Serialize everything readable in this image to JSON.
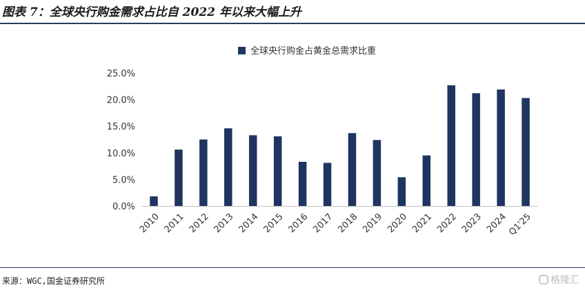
{
  "figure": {
    "title": "图表 7：全球央行购金需求占比自 2022 年以来大幅上升",
    "source": "来源：WGC,国金证券研究所",
    "watermark": "格隆汇"
  },
  "colors": {
    "bar": "#1f3460",
    "axis": "#bfbfbf",
    "rule": "#2b3a5c"
  },
  "chart_data": {
    "type": "bar",
    "categories": [
      "2010",
      "2011",
      "2012",
      "2013",
      "2014",
      "2015",
      "2016",
      "2017",
      "2018",
      "2019",
      "2020",
      "2021",
      "2022",
      "2023",
      "2024",
      "Q1'25"
    ],
    "series": [
      {
        "name": "全球央行购金占黄金总需求比重",
        "values": [
          1.8,
          10.6,
          12.5,
          14.6,
          13.3,
          13.1,
          8.3,
          8.1,
          13.7,
          12.4,
          5.4,
          9.5,
          22.7,
          21.2,
          21.9,
          20.3
        ]
      }
    ],
    "ylim": [
      0,
      25
    ],
    "yticks": [
      0,
      5,
      10,
      15,
      20,
      25
    ],
    "ytick_labels": [
      "0.0%",
      "5.0%",
      "10.0%",
      "15.0%",
      "20.0%",
      "25.0%"
    ],
    "legend_position": "top-center",
    "grid": false
  }
}
